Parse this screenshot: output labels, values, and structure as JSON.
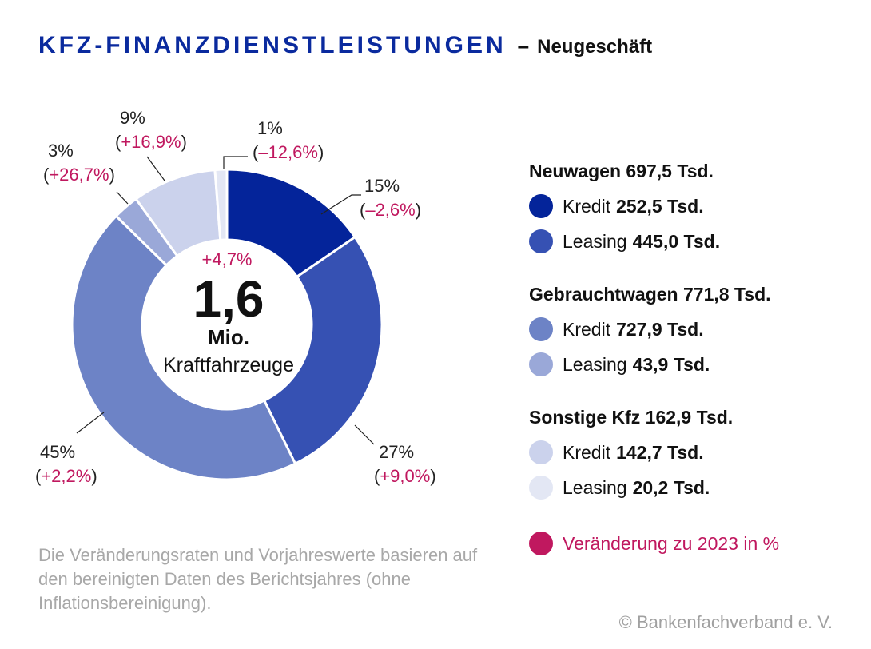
{
  "title": {
    "main": "KFZ-FINANZDIENSTLEISTUNGEN",
    "dash": "–",
    "sub": "Neugeschäft"
  },
  "center": {
    "change": "+4,7%",
    "value": "1,6",
    "unit": "Mio.",
    "label": "Kraftfahrzeuge"
  },
  "chart_data": {
    "type": "pie",
    "title": "KFZ-FINANZDIENSTLEISTUNGEN – Neugeschäft",
    "unit": "Tsd.",
    "total": "1,6 Mio. Kraftfahrzeuge",
    "series": [
      {
        "name": "Neuwagen Kredit",
        "value": 252.5,
        "percent": "15%",
        "change": "(–2,6%)",
        "color": "#04249a"
      },
      {
        "name": "Neuwagen Leasing",
        "value": 445.0,
        "percent": "27%",
        "change": "(+9,0%)",
        "color": "#3651b3"
      },
      {
        "name": "Gebrauchtwagen Kredit",
        "value": 727.9,
        "percent": "45%",
        "change": "(+2,2%)",
        "color": "#6d83c6"
      },
      {
        "name": "Gebrauchtwagen Leasing",
        "value": 43.9,
        "percent": "3%",
        "change": "(+26,7%)",
        "color": "#9aa8d8"
      },
      {
        "name": "Sonstige Kfz Kredit",
        "value": 142.7,
        "percent": "9%",
        "change": "(+16,9%)",
        "color": "#cbd2ec"
      },
      {
        "name": "Sonstige Kfz Leasing",
        "value": 20.2,
        "percent": "1%",
        "change": "(–12,6%)",
        "color": "#e3e7f4"
      }
    ]
  },
  "legend": {
    "groups": [
      {
        "head": "Neuwagen 697,5 Tsd.",
        "items": [
          {
            "label": "Kredit",
            "value": "252,5 Tsd.",
            "color": "#04249a"
          },
          {
            "label": "Leasing",
            "value": "445,0 Tsd.",
            "color": "#3651b3"
          }
        ]
      },
      {
        "head": "Gebrauchtwagen 771,8 Tsd.",
        "items": [
          {
            "label": "Kredit",
            "value": "727,9 Tsd.",
            "color": "#6d83c6"
          },
          {
            "label": "Leasing",
            "value": "43,9 Tsd.",
            "color": "#9aa8d8"
          }
        ]
      },
      {
        "head": "Sonstige Kfz 162,9 Tsd.",
        "items": [
          {
            "label": "Kredit",
            "value": "142,7 Tsd.",
            "color": "#cbd2ec"
          },
          {
            "label": "Leasing",
            "value": "20,2 Tsd.",
            "color": "#e3e7f4"
          }
        ]
      }
    ],
    "change_label": "Veränderung zu 2023 in %",
    "change_color": "#c0185f"
  },
  "note": "Die Veränderungsraten und Vorjahreswerte basieren auf den bereinigten Daten des Berichts­jahres (ohne Inflationsbereinigung).",
  "copyright": "© Bankenfachverband e. V."
}
